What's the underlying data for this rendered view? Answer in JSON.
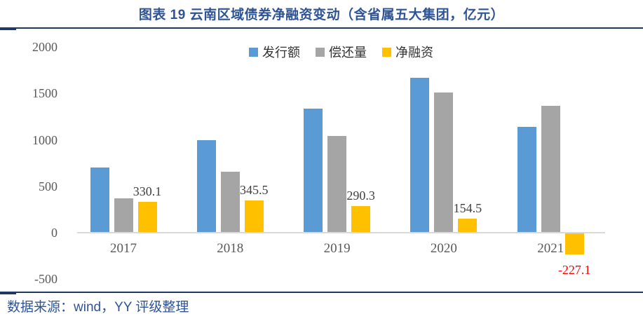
{
  "header": {
    "title": "图表 19  云南区域债券净融资变动（含省属五大集团，亿元）"
  },
  "footer": {
    "source": "数据来源：wind，YY 评级整理"
  },
  "colors": {
    "accent_navy": "#1F3864",
    "title_text": "#2F5496",
    "issuance_blue": "#5B9BD5",
    "repayment_gray": "#A5A5A5",
    "net_yellow": "#FFC000",
    "negative_label_red": "#FF0000",
    "axis_line": "#D9D9D9",
    "tick_text": "#595959",
    "data_label_text": "#404040"
  },
  "chart_data": {
    "type": "bar",
    "title": "图表 19  云南区域债券净融资变动（含省属五大集团，亿元）",
    "categories": [
      "2017",
      "2018",
      "2019",
      "2020",
      "2021"
    ],
    "series": [
      {
        "key": "issuance",
        "name": "发行额",
        "color": "#5B9BD5",
        "values": [
          700,
          1000,
          1335,
          1665,
          1137
        ]
      },
      {
        "key": "repayment",
        "name": "偿还量",
        "color": "#A5A5A5",
        "values": [
          370,
          655,
          1045,
          1511,
          1364
        ]
      },
      {
        "key": "net-financing",
        "name": "净融资",
        "color": "#FFC000",
        "values": [
          330.1,
          345.5,
          290.3,
          154.5,
          -227.1
        ],
        "data_labels": [
          "330.1",
          "345.5",
          "290.3",
          "154.5",
          "-227.1"
        ]
      }
    ],
    "xlabel": "",
    "ylabel": "",
    "ylim": [
      -500,
      2000
    ],
    "yticks": [
      2000,
      1500,
      1000,
      500,
      0,
      -500
    ],
    "legend_position": "top-center",
    "grid": false
  }
}
